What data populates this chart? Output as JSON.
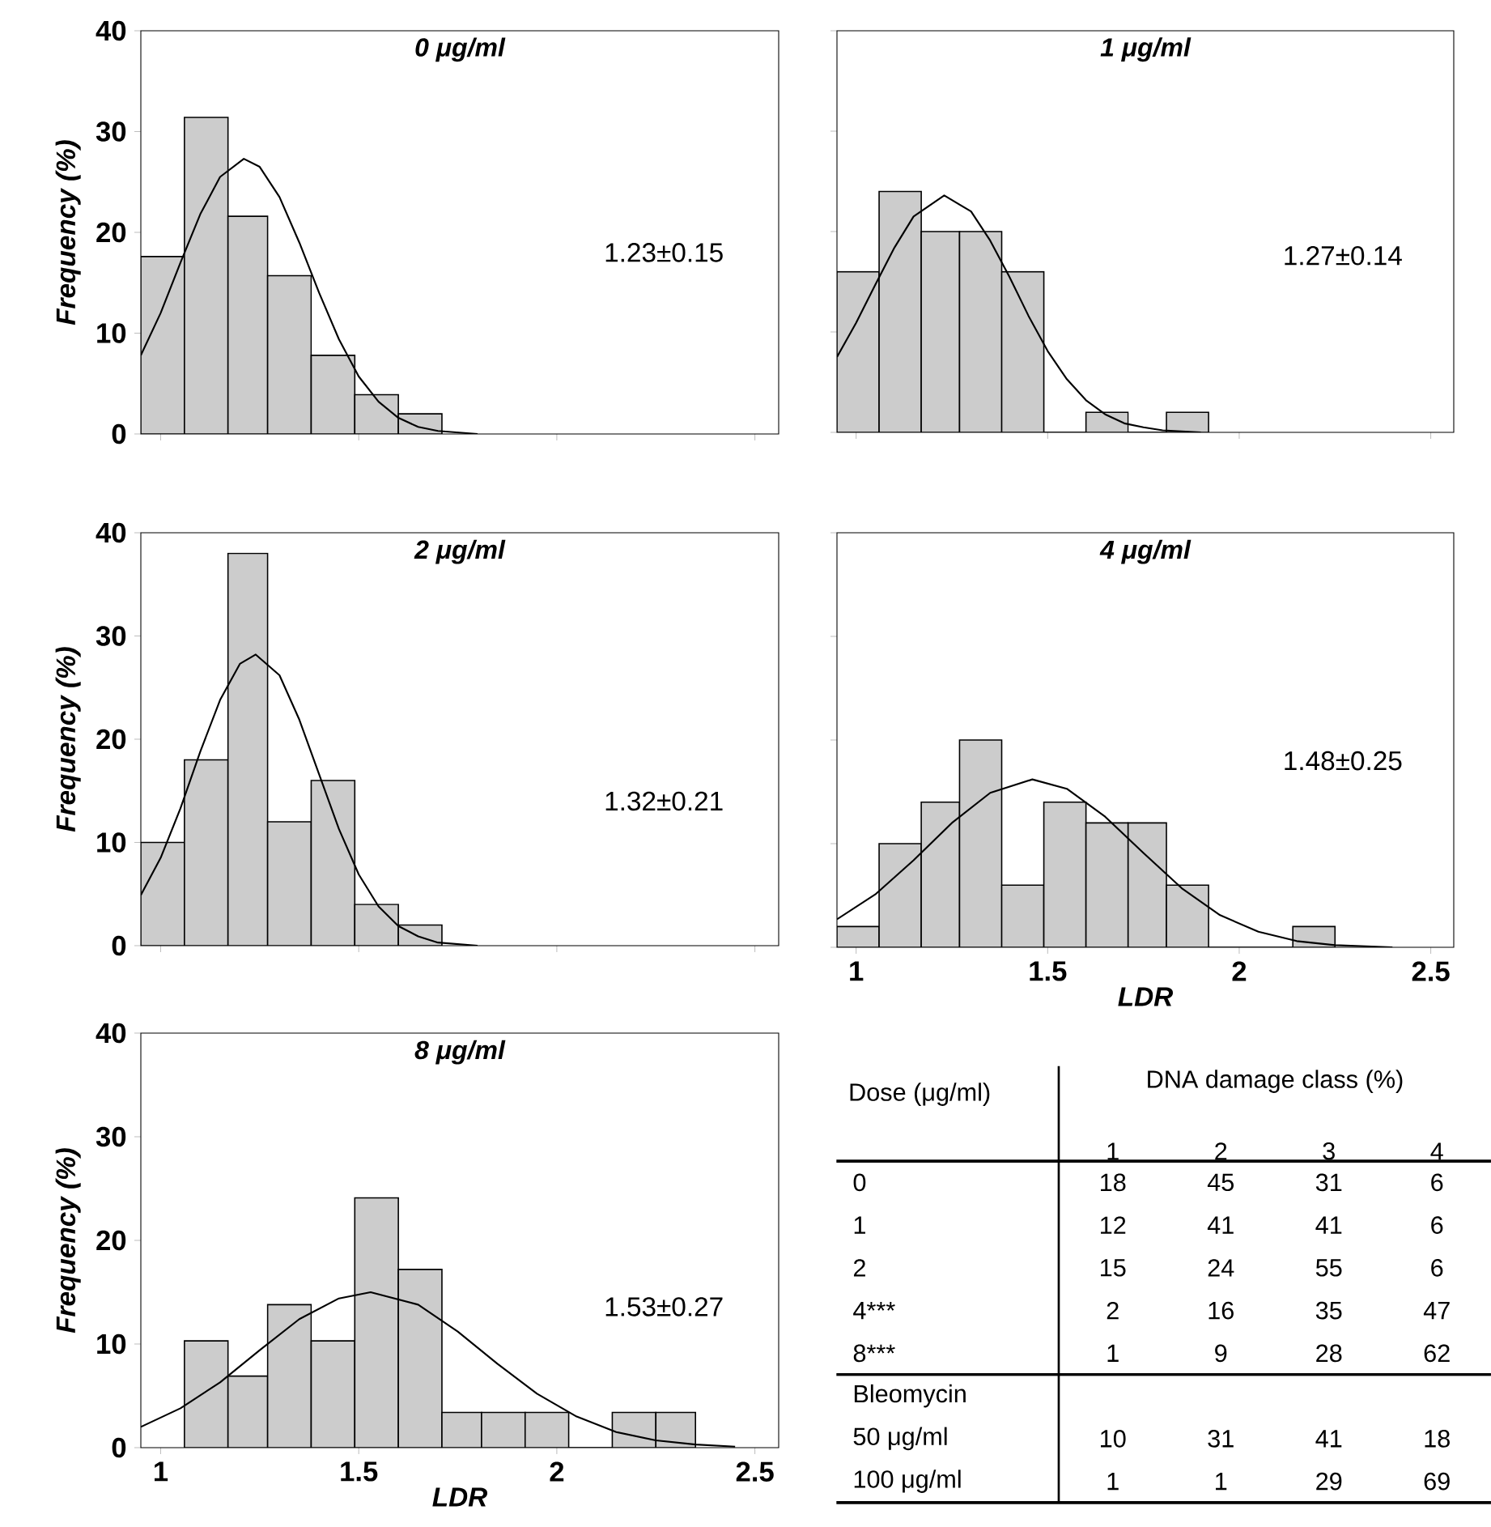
{
  "chart_data": [
    {
      "type": "histogram",
      "title": "0 μg/ml",
      "ylabel": "Frequency (%)",
      "annotations": [
        "1.23±0.15"
      ],
      "bins": [
        0.95,
        1.06,
        1.17,
        1.27,
        1.38,
        1.49,
        1.6,
        1.71
      ],
      "values": [
        17.6,
        31.4,
        21.6,
        15.7,
        7.8,
        3.9,
        2.0
      ],
      "color": "#cccccc",
      "series": [
        {
          "type": "line",
          "color": "#000000",
          "x": [
            0.95,
            1.0,
            1.05,
            1.1,
            1.15,
            1.21,
            1.25,
            1.3,
            1.35,
            1.4,
            1.45,
            1.5,
            1.55,
            1.6,
            1.65,
            1.7,
            1.8
          ],
          "values": [
            7.8,
            12.0,
            17.0,
            21.8,
            25.5,
            27.3,
            26.5,
            23.5,
            19.0,
            14.0,
            9.4,
            5.7,
            3.2,
            1.6,
            0.7,
            0.3,
            0.0
          ]
        }
      ],
      "xlim": [
        0.95,
        2.56
      ],
      "ylim": [
        0,
        40
      ],
      "xticks": [
        1,
        1.5,
        2,
        2.5
      ],
      "yticks": [
        0,
        10,
        20,
        30,
        40
      ],
      "tick_labels": "y"
    },
    {
      "type": "histogram",
      "title": "1 μg/ml",
      "annotations": [
        "1.27±0.14"
      ],
      "bins": [
        0.95,
        1.06,
        1.17,
        1.27,
        1.38,
        1.49,
        1.6,
        1.71,
        1.81,
        1.92
      ],
      "values": [
        16,
        24,
        20,
        20,
        16,
        0,
        2,
        0,
        2
      ],
      "color": "#cccccc",
      "series": [
        {
          "type": "line",
          "color": "#000000",
          "x": [
            0.95,
            1.0,
            1.05,
            1.1,
            1.15,
            1.23,
            1.3,
            1.35,
            1.4,
            1.45,
            1.5,
            1.55,
            1.6,
            1.65,
            1.7,
            1.75,
            1.8,
            1.9
          ],
          "values": [
            7.5,
            10.9,
            14.7,
            18.4,
            21.5,
            23.6,
            22.0,
            19.1,
            15.5,
            11.6,
            8.1,
            5.3,
            3.2,
            1.8,
            0.9,
            0.5,
            0.2,
            0.0
          ]
        }
      ],
      "xlim": [
        0.95,
        2.56
      ],
      "ylim": [
        0,
        40
      ],
      "xticks": [
        1,
        1.5,
        2,
        2.5
      ],
      "yticks": [
        0,
        10,
        20,
        30,
        40
      ],
      "tick_labels": false
    },
    {
      "type": "histogram",
      "title": "2 μg/ml",
      "ylabel": "Frequency (%)",
      "annotations": [
        "1.32±0.21"
      ],
      "bins": [
        0.95,
        1.06,
        1.17,
        1.27,
        1.38,
        1.49,
        1.6,
        1.71
      ],
      "values": [
        10,
        18,
        38,
        12,
        16,
        4,
        2
      ],
      "color": "#cccccc",
      "series": [
        {
          "type": "line",
          "color": "#000000",
          "x": [
            0.95,
            1.0,
            1.05,
            1.1,
            1.15,
            1.2,
            1.24,
            1.3,
            1.35,
            1.4,
            1.45,
            1.5,
            1.55,
            1.6,
            1.65,
            1.7,
            1.8
          ],
          "values": [
            4.9,
            8.5,
            13.3,
            18.8,
            23.8,
            27.3,
            28.2,
            26.2,
            21.9,
            16.6,
            11.3,
            6.9,
            3.8,
            1.9,
            0.9,
            0.3,
            0.0
          ]
        }
      ],
      "xlim": [
        0.95,
        2.56
      ],
      "ylim": [
        0,
        40
      ],
      "xticks": [
        1,
        1.5,
        2,
        2.5
      ],
      "yticks": [
        0,
        10,
        20,
        30,
        40
      ],
      "tick_labels": "y"
    },
    {
      "type": "histogram",
      "title": "4 μg/ml",
      "xlabel": "LDR",
      "annotations": [
        "1.48±0.25"
      ],
      "bins": [
        0.95,
        1.06,
        1.17,
        1.27,
        1.38,
        1.49,
        1.6,
        1.71,
        1.81,
        1.92,
        2.14,
        2.25
      ],
      "values": [
        2,
        10,
        14,
        20,
        6,
        14,
        12,
        12,
        6,
        0,
        2
      ],
      "color": "#cccccc",
      "series": [
        {
          "type": "line",
          "color": "#000000",
          "x": [
            0.95,
            1.05,
            1.15,
            1.25,
            1.35,
            1.46,
            1.55,
            1.65,
            1.75,
            1.85,
            1.95,
            2.05,
            2.15,
            2.25,
            2.4
          ],
          "values": [
            2.7,
            5.1,
            8.4,
            12.0,
            14.9,
            16.2,
            15.3,
            12.6,
            9.1,
            5.7,
            3.1,
            1.5,
            0.6,
            0.2,
            0.0
          ]
        }
      ],
      "xlim": [
        0.95,
        2.56
      ],
      "ylim": [
        0,
        40
      ],
      "xticks": [
        1,
        1.5,
        2,
        2.5
      ],
      "yticks": [
        0,
        10,
        20,
        30,
        40
      ],
      "tick_labels": "x"
    },
    {
      "type": "histogram",
      "title": "8 μg/ml",
      "xlabel": "LDR",
      "ylabel": "Frequency (%)",
      "annotations": [
        "1.53±0.27"
      ],
      "bins": [
        1.06,
        1.17,
        1.27,
        1.38,
        1.49,
        1.6,
        1.71,
        1.81,
        1.92,
        2.03,
        2.14,
        2.25,
        2.35
      ],
      "values": [
        10.3,
        6.9,
        13.8,
        10.3,
        24.1,
        17.2,
        3.4,
        3.4,
        3.4,
        0,
        3.4,
        3.4
      ],
      "color": "#cccccc",
      "series": [
        {
          "type": "line",
          "color": "#000000",
          "x": [
            0.95,
            1.05,
            1.15,
            1.25,
            1.35,
            1.45,
            1.53,
            1.65,
            1.75,
            1.85,
            1.95,
            2.05,
            2.15,
            2.25,
            2.35,
            2.45
          ],
          "values": [
            2.0,
            3.8,
            6.3,
            9.4,
            12.4,
            14.4,
            15.0,
            13.8,
            11.2,
            8.1,
            5.2,
            3.0,
            1.5,
            0.7,
            0.3,
            0.1
          ]
        }
      ],
      "xlim": [
        0.95,
        2.56
      ],
      "ylim": [
        0,
        40
      ],
      "xticks": [
        1,
        1.5,
        2,
        2.5
      ],
      "yticks": [
        0,
        10,
        20,
        30,
        40
      ]
    },
    {
      "type": "heatmap",
      "title": "DNA damage class (%)",
      "ylabel": "Dose (μg/ml)",
      "categories": [
        "1",
        "2",
        "3",
        "4"
      ],
      "y_categories": [
        "0",
        "1",
        "2",
        "4***",
        "8***",
        "Bleomycin",
        "50 μg/ml",
        "100 μg/ml"
      ],
      "cells": [
        [
          18,
          45,
          31,
          6
        ],
        [
          12,
          41,
          41,
          6
        ],
        [
          15,
          24,
          55,
          6
        ],
        [
          2,
          16,
          35,
          47
        ],
        [
          1,
          9,
          28,
          62
        ],
        [
          null,
          null,
          null,
          null
        ],
        [
          10,
          31,
          41,
          18
        ],
        [
          1,
          1,
          29,
          69
        ]
      ],
      "data_labels": true
    }
  ]
}
